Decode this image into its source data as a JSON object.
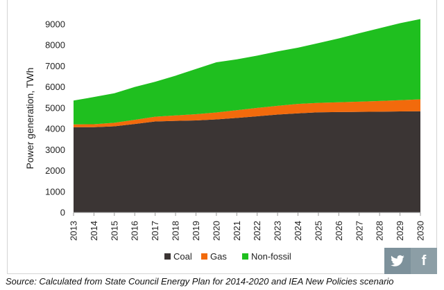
{
  "chart_data": {
    "type": "area",
    "stacked": true,
    "x": [
      2013,
      2014,
      2015,
      2016,
      2017,
      2018,
      2019,
      2020,
      2021,
      2022,
      2023,
      2024,
      2025,
      2026,
      2027,
      2028,
      2029,
      2030
    ],
    "series": [
      {
        "name": "Coal",
        "color": "#3b3534",
        "values": [
          4080,
          4080,
          4120,
          4230,
          4350,
          4380,
          4400,
          4450,
          4520,
          4600,
          4680,
          4740,
          4790,
          4800,
          4810,
          4820,
          4830,
          4840
        ]
      },
      {
        "name": "Gas",
        "color": "#f26a0c",
        "values": [
          130,
          140,
          170,
          200,
          230,
          260,
          300,
          330,
          370,
          400,
          420,
          450,
          450,
          470,
          490,
          510,
          540,
          570
        ]
      },
      {
        "name": "Non-fossil",
        "color": "#1fbf1f",
        "values": [
          1140,
          1300,
          1410,
          1570,
          1670,
          1900,
          2160,
          2400,
          2430,
          2500,
          2600,
          2690,
          2860,
          3050,
          3270,
          3480,
          3680,
          3840
        ]
      }
    ],
    "ylabel": "Power generation, TWh",
    "ylim": [
      0,
      9000
    ],
    "yticks": [
      0,
      1000,
      2000,
      3000,
      4000,
      5000,
      6000,
      7000,
      8000,
      9000
    ],
    "grid": false,
    "legend_position": "bottom"
  },
  "source": "Source: Calculated from State Council Energy Plan for 2014-2020 and IEA New Policies scenario",
  "share": {
    "twitter_icon": "twitter-icon",
    "facebook_icon": "facebook-icon",
    "facebook_glyph": "f"
  }
}
